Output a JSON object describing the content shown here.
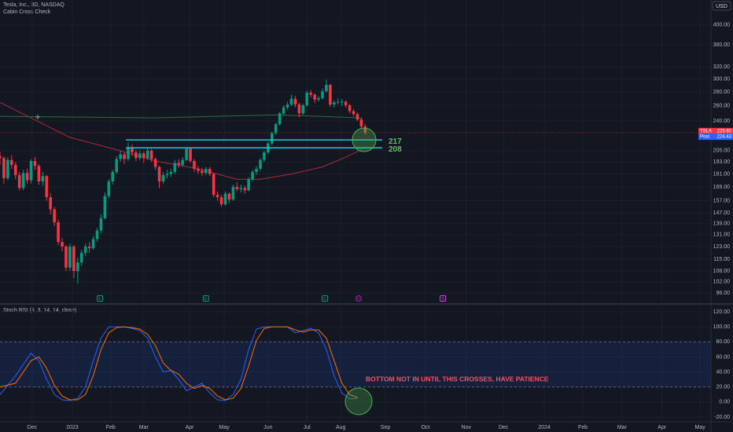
{
  "chart_data": {
    "type": "candlestick",
    "title": "Tesla, Inc., 3D, NASDAQ",
    "subtitle": "Cabin Cross Check",
    "currency": "USD",
    "log_scale": true,
    "grid": true,
    "up_color": "#089981",
    "down_color": "#f23645",
    "xlim": [
      0,
      183
    ],
    "ylim": [
      91,
      457
    ],
    "yticks": [
      {
        "value": 400,
        "label": "400.00"
      },
      {
        "value": 360,
        "label": "360.00"
      },
      {
        "value": 320,
        "label": "320.00"
      },
      {
        "value": 300,
        "label": "300.00"
      },
      {
        "value": 280,
        "label": "280.00"
      },
      {
        "value": 260,
        "label": "260.00"
      },
      {
        "value": 240,
        "label": "240.00"
      },
      {
        "value": 205,
        "label": "205.00"
      },
      {
        "value": 193,
        "label": "193.00"
      },
      {
        "value": 181,
        "label": "181.00"
      },
      {
        "value": 169,
        "label": "169.00"
      },
      {
        "value": 157,
        "label": "157.00"
      },
      {
        "value": 147,
        "label": "147.00"
      },
      {
        "value": 139,
        "label": "139.00"
      },
      {
        "value": 131,
        "label": "131.00"
      },
      {
        "value": 123,
        "label": "123.00"
      },
      {
        "value": 115,
        "label": "115.00"
      },
      {
        "value": 108,
        "label": "108.00"
      },
      {
        "value": 102,
        "label": "102.00"
      },
      {
        "value": 96,
        "label": "96.00"
      }
    ],
    "xticks": [
      {
        "value": 8.3,
        "label": "Dec"
      },
      {
        "value": 18.6,
        "label": "2023"
      },
      {
        "value": 28.5,
        "label": "Feb"
      },
      {
        "value": 37,
        "label": "Mar"
      },
      {
        "value": 48.8,
        "label": "Apr"
      },
      {
        "value": 57.7,
        "label": "May"
      },
      {
        "value": 69,
        "label": "Jun"
      },
      {
        "value": 79,
        "label": "Jul"
      },
      {
        "value": 87.7,
        "label": "Aug"
      },
      {
        "value": 99.2,
        "label": "Sep"
      },
      {
        "value": 109.5,
        "label": "Oct"
      },
      {
        "value": 120,
        "label": "Nov"
      },
      {
        "value": 129.6,
        "label": "Dec"
      },
      {
        "value": 140.1,
        "label": "2024"
      },
      {
        "value": 150,
        "label": "Feb"
      },
      {
        "value": 160.1,
        "label": "Mar"
      },
      {
        "value": 170.4,
        "label": "Apr"
      },
      {
        "value": 180.2,
        "label": "May"
      }
    ],
    "x": [
      0,
      1,
      2,
      3,
      4,
      5,
      6,
      7,
      8,
      9,
      10,
      11,
      12,
      13,
      14,
      15,
      16,
      17,
      18,
      19,
      20,
      21,
      22,
      23,
      24,
      25,
      26,
      27,
      28,
      29,
      30,
      31,
      32,
      33,
      34,
      35,
      36,
      37,
      38,
      39,
      40,
      41,
      42,
      43,
      44,
      45,
      46,
      47,
      48,
      49,
      50,
      51,
      52,
      53,
      54,
      55,
      56,
      57,
      58,
      59,
      60,
      61,
      62,
      63,
      64,
      65,
      66,
      67,
      68,
      69,
      70,
      71,
      72,
      73,
      74,
      75,
      76,
      77,
      78,
      79,
      80,
      81,
      82,
      83,
      84,
      85,
      86,
      87,
      88,
      89,
      90,
      91,
      92,
      93,
      94
    ],
    "candles": [
      [
        199,
        204,
        190,
        197
      ],
      [
        197,
        199,
        172,
        177
      ],
      [
        177,
        198,
        175,
        195
      ],
      [
        195,
        200,
        186,
        190
      ],
      [
        190,
        193,
        176,
        180
      ],
      [
        180,
        183,
        166,
        168
      ],
      [
        168,
        185,
        166,
        182
      ],
      [
        182,
        186,
        172,
        175
      ],
      [
        175,
        196,
        172,
        194
      ],
      [
        194,
        198,
        185,
        189
      ],
      [
        189,
        191,
        171,
        174
      ],
      [
        174,
        183,
        170,
        179
      ],
      [
        179,
        180,
        157,
        160
      ],
      [
        160,
        163,
        146,
        150
      ],
      [
        150,
        152,
        137,
        140
      ],
      [
        140,
        142,
        124,
        126
      ],
      [
        126,
        129,
        120,
        123
      ],
      [
        123,
        124,
        108,
        110
      ],
      [
        110,
        125,
        108,
        123
      ],
      [
        123,
        124,
        104,
        108
      ],
      [
        108,
        116,
        101,
        113
      ],
      [
        113,
        121,
        111,
        119
      ],
      [
        119,
        125,
        117,
        123
      ],
      [
        123,
        126,
        119,
        122
      ],
      [
        122,
        130,
        121,
        128
      ],
      [
        128,
        136,
        126,
        134
      ],
      [
        134,
        146,
        132,
        143
      ],
      [
        143,
        164,
        142,
        161
      ],
      [
        161,
        176,
        159,
        174
      ],
      [
        174,
        185,
        171,
        183
      ],
      [
        183,
        199,
        181,
        196
      ],
      [
        196,
        205,
        193,
        201
      ],
      [
        201,
        203,
        191,
        196
      ],
      [
        196,
        214,
        194,
        208
      ],
      [
        208,
        212,
        199,
        203
      ],
      [
        203,
        206,
        194,
        197
      ],
      [
        197,
        205,
        195,
        202
      ],
      [
        202,
        204,
        192,
        197
      ],
      [
        197,
        208,
        195,
        205
      ],
      [
        205,
        207,
        193,
        196
      ],
      [
        196,
        198,
        185,
        188
      ],
      [
        188,
        189,
        168,
        174
      ],
      [
        174,
        183,
        172,
        180
      ],
      [
        180,
        185,
        177,
        181
      ],
      [
        181,
        186,
        178,
        183
      ],
      [
        183,
        195,
        181,
        192
      ],
      [
        192,
        196,
        187,
        190
      ],
      [
        190,
        198,
        188,
        195
      ],
      [
        195,
        208,
        194,
        207
      ],
      [
        207,
        208,
        192,
        194
      ],
      [
        194,
        196,
        183,
        186
      ],
      [
        186,
        189,
        181,
        184
      ],
      [
        184,
        187,
        179,
        182
      ],
      [
        182,
        188,
        180,
        186
      ],
      [
        186,
        188,
        179,
        181
      ],
      [
        181,
        182,
        160,
        162
      ],
      [
        162,
        165,
        157,
        160
      ],
      [
        160,
        162,
        152,
        154
      ],
      [
        154,
        165,
        153,
        163
      ],
      [
        163,
        164,
        155,
        158
      ],
      [
        158,
        171,
        157,
        169
      ],
      [
        169,
        173,
        165,
        167
      ],
      [
        167,
        171,
        164,
        168
      ],
      [
        168,
        170,
        163,
        166
      ],
      [
        166,
        178,
        165,
        176
      ],
      [
        176,
        185,
        174,
        183
      ],
      [
        183,
        189,
        180,
        186
      ],
      [
        186,
        197,
        184,
        195
      ],
      [
        195,
        205,
        193,
        203
      ],
      [
        203,
        215,
        201,
        213
      ],
      [
        213,
        227,
        211,
        225
      ],
      [
        225,
        238,
        223,
        236
      ],
      [
        236,
        252,
        234,
        250
      ],
      [
        250,
        261,
        247,
        258
      ],
      [
        258,
        266,
        255,
        262
      ],
      [
        262,
        276,
        260,
        270
      ],
      [
        270,
        274,
        258,
        262
      ],
      [
        262,
        264,
        245,
        250
      ],
      [
        250,
        263,
        248,
        261
      ],
      [
        261,
        282,
        259,
        279
      ],
      [
        279,
        283,
        272,
        276
      ],
      [
        276,
        278,
        264,
        269
      ],
      [
        269,
        274,
        266,
        271
      ],
      [
        271,
        285,
        269,
        281
      ],
      [
        281,
        299,
        279,
        291
      ],
      [
        291,
        292,
        259,
        262
      ],
      [
        262,
        268,
        258,
        265
      ],
      [
        265,
        271,
        262,
        266
      ],
      [
        266,
        270,
        260,
        266
      ],
      [
        266,
        268,
        258,
        261
      ],
      [
        261,
        263,
        250,
        253
      ],
      [
        253,
        256,
        246,
        249
      ],
      [
        249,
        251,
        240,
        242
      ],
      [
        242,
        244,
        230,
        233
      ],
      [
        233,
        236,
        223,
        225.6
      ]
    ],
    "lines": [
      {
        "color": "#b2283a",
        "x": [
          0,
          8,
          18,
          30,
          40,
          51,
          61,
          67,
          75,
          83,
          89,
          93
        ],
        "values": [
          265,
          244,
          220,
          206,
          194,
          186,
          176,
          176,
          181,
          188,
          198,
          206
        ]
      },
      {
        "color": "#2e6b3c",
        "x": [
          0,
          40,
          71,
          93
        ],
        "values": [
          246,
          244,
          248,
          244
        ]
      }
    ],
    "levels": [
      217,
      208
    ],
    "level_color": "#26c6da",
    "level_label_color": "#66bb6a",
    "last_price": {
      "symbol": "TSLA",
      "value": 225.6,
      "label": "225.60",
      "color": "#f23645"
    },
    "post_price": {
      "symbol": "Post",
      "value": 224.43,
      "color": "#2962ff"
    },
    "events": {
      "x": [
        25.7,
        53,
        83.6,
        92.3,
        114
      ],
      "labels": [
        "E",
        "E",
        "E",
        "D",
        "S"
      ],
      "colors": [
        "#089981",
        "#089981",
        "#089981",
        "#9c27b0",
        "#e040fb"
      ]
    },
    "annotation": "BOTTOM NOT IN UNTIL THIS CROSSES, HAVE PATIENCE",
    "indicator": {
      "title": "Stoch RSI (3, 3, 14, 14, close)",
      "ylim": [
        -20,
        120
      ],
      "yticks": [
        {
          "value": 120,
          "label": "120.00"
        },
        {
          "value": 100,
          "label": "100.00"
        },
        {
          "value": 80,
          "label": "80.00"
        },
        {
          "value": 60,
          "label": "60.00"
        },
        {
          "value": 40,
          "label": "40.00"
        },
        {
          "value": 20,
          "label": "20.00"
        },
        {
          "value": 0,
          "label": "0.00"
        },
        {
          "value": -20,
          "label": "-20.00"
        }
      ],
      "band": [
        20,
        80
      ],
      "x": [
        0,
        4,
        8,
        10,
        12,
        14,
        16,
        18,
        20,
        22,
        24,
        26,
        28,
        30,
        32,
        34,
        36,
        38,
        40,
        42,
        44,
        46,
        48,
        50,
        52,
        54,
        56,
        58,
        60,
        62,
        64,
        66,
        68,
        70,
        72,
        74,
        76,
        78,
        80,
        82,
        84,
        86,
        88,
        90,
        92
      ],
      "k": {
        "color": "#2962ff",
        "values": [
          10,
          35,
          65,
          55,
          30,
          10,
          3,
          2,
          5,
          20,
          55,
          85,
          100,
          100,
          100,
          98,
          95,
          85,
          60,
          40,
          42,
          30,
          15,
          20,
          25,
          12,
          3,
          2,
          10,
          30,
          70,
          97,
          100,
          100,
          100,
          100,
          92,
          95,
          98,
          92,
          70,
          35,
          12,
          4,
          5
        ]
      },
      "d": {
        "color": "#ff6d00",
        "values": [
          20,
          25,
          55,
          60,
          45,
          22,
          8,
          3,
          3,
          10,
          35,
          70,
          92,
          99,
          100,
          99,
          97,
          90,
          75,
          52,
          42,
          37,
          25,
          18,
          22,
          18,
          8,
          3,
          5,
          18,
          48,
          82,
          98,
          100,
          100,
          100,
          96,
          93,
          96,
          96,
          85,
          55,
          25,
          10,
          6
        ]
      }
    }
  }
}
